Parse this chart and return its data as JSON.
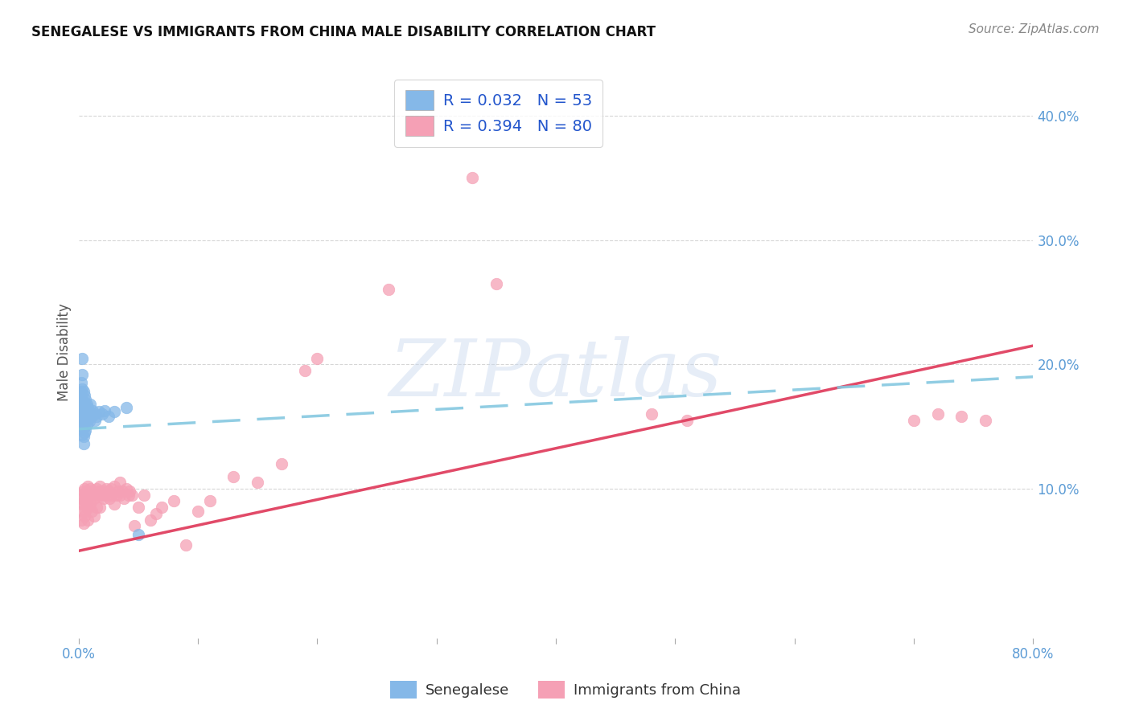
{
  "title": "SENEGALESE VS IMMIGRANTS FROM CHINA MALE DISABILITY CORRELATION CHART",
  "source": "Source: ZipAtlas.com",
  "ylabel": "Male Disability",
  "xlim": [
    0.0,
    0.8
  ],
  "ylim": [
    -0.02,
    0.44
  ],
  "xtick_positions": [
    0.0,
    0.1,
    0.2,
    0.3,
    0.4,
    0.5,
    0.6,
    0.7,
    0.8
  ],
  "xtick_labels": [
    "0.0%",
    "",
    "",
    "",
    "",
    "",
    "",
    "",
    "80.0%"
  ],
  "ytick_positions": [
    0.1,
    0.2,
    0.3,
    0.4
  ],
  "ytick_labels": [
    "10.0%",
    "20.0%",
    "30.0%",
    "40.0%"
  ],
  "grid_color": "#cccccc",
  "background_color": "#ffffff",
  "tick_label_color": "#5b9bd5",
  "watermark_text": "ZIPatlas",
  "watermark_color": "#c8d8ee",
  "color_blue": "#85b8e8",
  "color_pink": "#f5a0b5",
  "trendline_blue_color": "#85c8e0",
  "trendline_pink_color": "#e04060",
  "blue_trendline_x": [
    0.0,
    0.8
  ],
  "blue_trendline_y": [
    0.148,
    0.19
  ],
  "pink_trendline_x": [
    0.0,
    0.8
  ],
  "pink_trendline_y": [
    0.05,
    0.215
  ],
  "senegalese_x": [
    0.001,
    0.001,
    0.001,
    0.002,
    0.002,
    0.002,
    0.002,
    0.002,
    0.003,
    0.003,
    0.003,
    0.003,
    0.003,
    0.003,
    0.003,
    0.004,
    0.004,
    0.004,
    0.004,
    0.004,
    0.004,
    0.004,
    0.005,
    0.005,
    0.005,
    0.005,
    0.005,
    0.006,
    0.006,
    0.006,
    0.006,
    0.007,
    0.007,
    0.007,
    0.008,
    0.008,
    0.009,
    0.009,
    0.01,
    0.01,
    0.011,
    0.012,
    0.013,
    0.014,
    0.015,
    0.017,
    0.02,
    0.022,
    0.025,
    0.03,
    0.04,
    0.05,
    0.003
  ],
  "senegalese_y": [
    0.175,
    0.17,
    0.165,
    0.185,
    0.178,
    0.17,
    0.162,
    0.155,
    0.192,
    0.18,
    0.172,
    0.165,
    0.158,
    0.15,
    0.143,
    0.178,
    0.17,
    0.163,
    0.156,
    0.149,
    0.142,
    0.136,
    0.175,
    0.168,
    0.16,
    0.152,
    0.145,
    0.172,
    0.163,
    0.155,
    0.147,
    0.168,
    0.16,
    0.152,
    0.165,
    0.156,
    0.162,
    0.154,
    0.168,
    0.16,
    0.158,
    0.163,
    0.16,
    0.155,
    0.158,
    0.162,
    0.16,
    0.163,
    0.158,
    0.162,
    0.165,
    0.063,
    0.205
  ],
  "china_x": [
    0.001,
    0.002,
    0.002,
    0.003,
    0.003,
    0.004,
    0.004,
    0.004,
    0.005,
    0.005,
    0.005,
    0.006,
    0.006,
    0.007,
    0.007,
    0.008,
    0.008,
    0.008,
    0.009,
    0.009,
    0.01,
    0.01,
    0.011,
    0.011,
    0.012,
    0.013,
    0.013,
    0.014,
    0.015,
    0.015,
    0.016,
    0.017,
    0.018,
    0.018,
    0.019,
    0.02,
    0.021,
    0.022,
    0.023,
    0.024,
    0.025,
    0.026,
    0.027,
    0.028,
    0.03,
    0.03,
    0.032,
    0.033,
    0.035,
    0.035,
    0.037,
    0.038,
    0.04,
    0.042,
    0.043,
    0.045,
    0.047,
    0.05,
    0.055,
    0.06,
    0.065,
    0.07,
    0.08,
    0.09,
    0.1,
    0.11,
    0.13,
    0.15,
    0.17,
    0.19,
    0.2,
    0.26,
    0.33,
    0.35,
    0.48,
    0.51,
    0.7,
    0.72,
    0.74,
    0.76
  ],
  "china_y": [
    0.095,
    0.088,
    0.075,
    0.092,
    0.082,
    0.098,
    0.088,
    0.072,
    0.1,
    0.09,
    0.078,
    0.095,
    0.082,
    0.098,
    0.085,
    0.102,
    0.092,
    0.075,
    0.098,
    0.086,
    0.1,
    0.088,
    0.095,
    0.082,
    0.098,
    0.092,
    0.078,
    0.095,
    0.1,
    0.085,
    0.095,
    0.098,
    0.102,
    0.085,
    0.095,
    0.098,
    0.092,
    0.095,
    0.1,
    0.095,
    0.098,
    0.092,
    0.1,
    0.095,
    0.102,
    0.088,
    0.095,
    0.098,
    0.095,
    0.105,
    0.098,
    0.092,
    0.1,
    0.095,
    0.098,
    0.095,
    0.07,
    0.085,
    0.095,
    0.075,
    0.08,
    0.085,
    0.09,
    0.055,
    0.082,
    0.09,
    0.11,
    0.105,
    0.12,
    0.195,
    0.205,
    0.26,
    0.35,
    0.265,
    0.16,
    0.155,
    0.155,
    0.16,
    0.158,
    0.155
  ],
  "legend_blue_label": "R = 0.032   N = 53",
  "legend_pink_label": "R = 0.394   N = 80",
  "bottom_legend_blue": "Senegalese",
  "bottom_legend_pink": "Immigrants from China",
  "legend_text_color": "#2255cc",
  "title_fontsize": 12,
  "source_fontsize": 11,
  "tick_fontsize": 12,
  "legend_fontsize": 14,
  "ylabel_fontsize": 12
}
